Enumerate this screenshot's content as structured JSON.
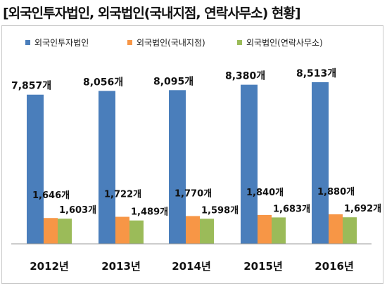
{
  "title": "[외국인투자법인, 외국법인(국내지점, 연락사무소) 현황]",
  "chart_data": {
    "type": "bar",
    "categories": [
      "2012년",
      "2013년",
      "2014년",
      "2015년",
      "2016년"
    ],
    "series": [
      {
        "name": "외국인투자법인",
        "color": "#4a7ebb",
        "values": [
          7857,
          8056,
          8095,
          8380,
          8513
        ],
        "labels": [
          "7,857개",
          "8,056개",
          "8,095개",
          "8,380개",
          "8,513개"
        ]
      },
      {
        "name": "외국법인(국내지점)",
        "color": "#f79646",
        "values": [
          1646,
          1722,
          1770,
          1840,
          1880
        ],
        "labels": [
          "1,646개",
          "1,722개",
          "1,770개",
          "1,840개",
          "1,880개"
        ]
      },
      {
        "name": "외국법인(연락사무소)",
        "color": "#9bbb59",
        "values": [
          1603,
          1489,
          1598,
          1683,
          1692
        ],
        "labels": [
          "1,603개",
          "1,489개",
          "1,598개",
          "1,683개",
          "1,692개"
        ]
      }
    ],
    "legend_position": "top",
    "grid": false
  }
}
